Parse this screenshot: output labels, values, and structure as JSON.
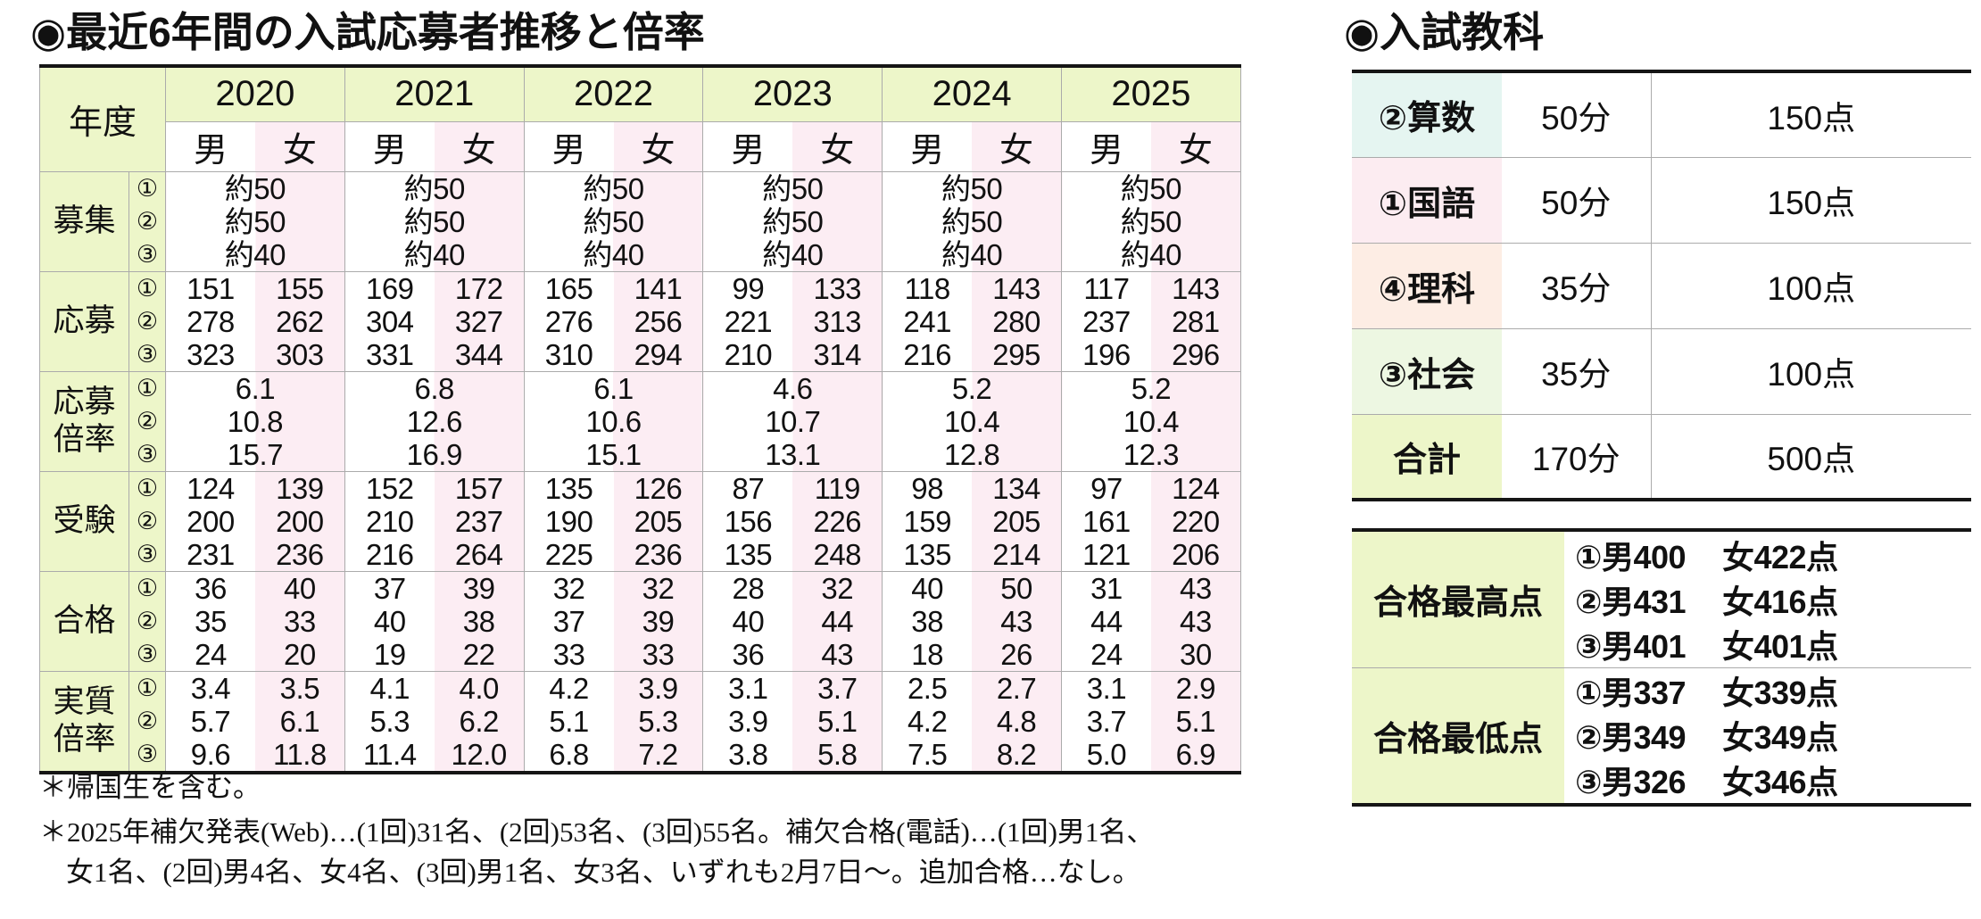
{
  "colors": {
    "label_green": "#edf6c9",
    "female_pink": "#fcedf3",
    "math_cyan": "#e5f5f1",
    "japanese_pink": "#fcecf1",
    "science_salmon": "#fdede4",
    "social_green": "#edf7e2",
    "total_green": "#edf6c9",
    "border_dark": "#151515",
    "border_light": "#ababab"
  },
  "main": {
    "title": "◉最近6年間の入試応募者推移と倍率",
    "year_header": "年度",
    "years": [
      "2020",
      "2021",
      "2022",
      "2023",
      "2024",
      "2025"
    ],
    "genders": [
      "男",
      "女"
    ],
    "round_marks": [
      "①",
      "②",
      "③"
    ],
    "sections": [
      {
        "id": "bosyu",
        "label": "募集",
        "label_lines": [
          "募集"
        ],
        "type": "merged",
        "values": [
          [
            "約50",
            "約50",
            "約40"
          ],
          [
            "約50",
            "約50",
            "約40"
          ],
          [
            "約50",
            "約50",
            "約40"
          ],
          [
            "約50",
            "約50",
            "約40"
          ],
          [
            "約50",
            "約50",
            "約40"
          ],
          [
            "約50",
            "約50",
            "約40"
          ]
        ]
      },
      {
        "id": "obo",
        "label": "応募",
        "label_lines": [
          "応募"
        ],
        "type": "mf",
        "values": [
          {
            "m": [
              "151",
              "278",
              "323"
            ],
            "f": [
              "155",
              "262",
              "303"
            ]
          },
          {
            "m": [
              "169",
              "304",
              "331"
            ],
            "f": [
              "172",
              "327",
              "344"
            ]
          },
          {
            "m": [
              "165",
              "276",
              "310"
            ],
            "f": [
              "141",
              "256",
              "294"
            ]
          },
          {
            "m": [
              "99",
              "221",
              "210"
            ],
            "f": [
              "133",
              "313",
              "314"
            ]
          },
          {
            "m": [
              "118",
              "241",
              "216"
            ],
            "f": [
              "143",
              "280",
              "295"
            ]
          },
          {
            "m": [
              "117",
              "237",
              "196"
            ],
            "f": [
              "143",
              "281",
              "296"
            ]
          }
        ]
      },
      {
        "id": "obo-bairitsu",
        "label": "応募倍率",
        "label_lines": [
          "応募",
          "倍率"
        ],
        "type": "merged",
        "values": [
          [
            "6.1",
            "10.8",
            "15.7"
          ],
          [
            "6.8",
            "12.6",
            "16.9"
          ],
          [
            "6.1",
            "10.6",
            "15.1"
          ],
          [
            "4.6",
            "10.7",
            "13.1"
          ],
          [
            "5.2",
            "10.4",
            "12.8"
          ],
          [
            "5.2",
            "10.4",
            "12.3"
          ]
        ]
      },
      {
        "id": "juken",
        "label": "受験",
        "label_lines": [
          "受験"
        ],
        "type": "mf",
        "values": [
          {
            "m": [
              "124",
              "200",
              "231"
            ],
            "f": [
              "139",
              "200",
              "236"
            ]
          },
          {
            "m": [
              "152",
              "210",
              "216"
            ],
            "f": [
              "157",
              "237",
              "264"
            ]
          },
          {
            "m": [
              "135",
              "190",
              "225"
            ],
            "f": [
              "126",
              "205",
              "236"
            ]
          },
          {
            "m": [
              "87",
              "156",
              "135"
            ],
            "f": [
              "119",
              "226",
              "248"
            ]
          },
          {
            "m": [
              "98",
              "159",
              "135"
            ],
            "f": [
              "134",
              "205",
              "214"
            ]
          },
          {
            "m": [
              "97",
              "161",
              "121"
            ],
            "f": [
              "124",
              "220",
              "206"
            ]
          }
        ]
      },
      {
        "id": "gokaku",
        "label": "合格",
        "label_lines": [
          "合格"
        ],
        "type": "mf",
        "values": [
          {
            "m": [
              "36",
              "35",
              "24"
            ],
            "f": [
              "40",
              "33",
              "20"
            ]
          },
          {
            "m": [
              "37",
              "40",
              "19"
            ],
            "f": [
              "39",
              "38",
              "22"
            ]
          },
          {
            "m": [
              "32",
              "37",
              "33"
            ],
            "f": [
              "32",
              "39",
              "33"
            ]
          },
          {
            "m": [
              "28",
              "40",
              "36"
            ],
            "f": [
              "32",
              "44",
              "43"
            ]
          },
          {
            "m": [
              "40",
              "38",
              "18"
            ],
            "f": [
              "50",
              "43",
              "26"
            ]
          },
          {
            "m": [
              "31",
              "44",
              "24"
            ],
            "f": [
              "43",
              "43",
              "30"
            ]
          }
        ]
      },
      {
        "id": "jisshitsu-bairitsu",
        "label": "実質倍率",
        "label_lines": [
          "実質",
          "倍率"
        ],
        "type": "mf",
        "values": [
          {
            "m": [
              "3.4",
              "5.7",
              "9.6"
            ],
            "f": [
              "3.5",
              "6.1",
              "11.8"
            ]
          },
          {
            "m": [
              "4.1",
              "5.3",
              "11.4"
            ],
            "f": [
              "4.0",
              "6.2",
              "12.0"
            ]
          },
          {
            "m": [
              "4.2",
              "5.1",
              "6.8"
            ],
            "f": [
              "3.9",
              "5.3",
              "7.2"
            ]
          },
          {
            "m": [
              "3.1",
              "3.9",
              "3.8"
            ],
            "f": [
              "3.7",
              "5.1",
              "5.8"
            ]
          },
          {
            "m": [
              "2.5",
              "4.2",
              "7.5"
            ],
            "f": [
              "2.7",
              "4.8",
              "8.2"
            ]
          },
          {
            "m": [
              "3.1",
              "3.7",
              "5.0"
            ],
            "f": [
              "2.9",
              "5.1",
              "6.9"
            ]
          }
        ]
      }
    ],
    "footnotes": [
      "＊帰国生を含む。",
      "＊2025年補欠発表(Web)…(1回)31名、(2回)53名、(3回)55名。補欠合格(電話)…(1回)男1名、",
      "女1名、(2回)男4名、女4名、(3回)男1名、女3名、いずれも2月7日〜。追加合格…なし。"
    ]
  },
  "subjects": {
    "title": "◉入試教科",
    "rows": [
      {
        "name": "②算数",
        "time": "50分",
        "points": "150点",
        "bg": "cyan"
      },
      {
        "name": "①国語",
        "time": "50分",
        "points": "150点",
        "bg": "pink"
      },
      {
        "name": "④理科",
        "time": "35分",
        "points": "100点",
        "bg": "salmon"
      },
      {
        "name": "③社会",
        "time": "35分",
        "points": "100点",
        "bg": "green"
      },
      {
        "name": "合計",
        "time": "170分",
        "points": "500点",
        "bg": "ygreen"
      }
    ]
  },
  "scores": {
    "rows": [
      {
        "label": "合格最高点",
        "lines": [
          {
            "m": "①男400",
            "f": "女422点"
          },
          {
            "m": "②男431",
            "f": "女416点"
          },
          {
            "m": "③男401",
            "f": "女401点"
          }
        ]
      },
      {
        "label": "合格最低点",
        "lines": [
          {
            "m": "①男337",
            "f": "女339点"
          },
          {
            "m": "②男349",
            "f": "女349点"
          },
          {
            "m": "③男326",
            "f": "女346点"
          }
        ]
      }
    ]
  }
}
